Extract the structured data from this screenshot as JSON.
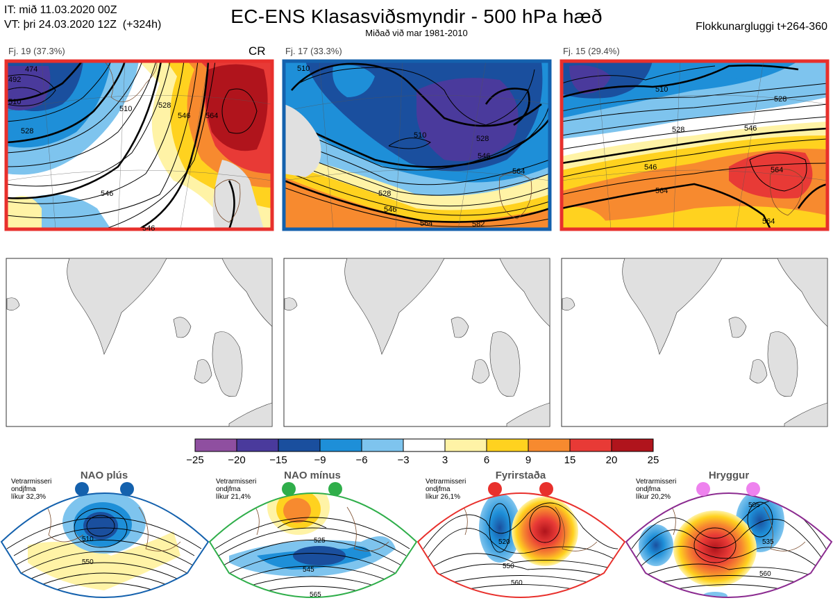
{
  "header": {
    "init_time": "IT: mið 11.03.2020 00Z",
    "valid_time": "VT: þri 24.03.2020 12Z",
    "lead": "(+324h)",
    "title": "EC-ENS Klasasviðsmyndir - 500 hPa hæð",
    "subtitle": "Miðað við mar 1981-2010",
    "window": "Flokkunargluggi t+264-360"
  },
  "clusters": [
    {
      "label": "Fj. 19 (37.3%)",
      "tag": "CR",
      "frame_color": "#e8302c",
      "contour_labels": [
        "474",
        "492",
        "510",
        "510",
        "528",
        "528",
        "546",
        "546",
        "564",
        "546"
      ]
    },
    {
      "label": "Fj. 17 (33.3%)",
      "tag": "",
      "frame_color": "#1461ad",
      "contour_labels": [
        "510",
        "510",
        "528",
        "546",
        "528",
        "546",
        "564",
        "564",
        "582"
      ]
    },
    {
      "label": "Fj. 15 (29.4%)",
      "tag": "",
      "frame_color": "#e8302c",
      "contour_labels": [
        "510",
        "528",
        "528",
        "546",
        "546",
        "564",
        "564",
        "564"
      ]
    }
  ],
  "colorbar": {
    "ticks": [
      "−25",
      "−20",
      "−15",
      "−9",
      "−6",
      "−3",
      "3",
      "6",
      "9",
      "15",
      "20",
      "25"
    ],
    "colors": [
      "#8f4fa0",
      "#4a3a9c",
      "#1a4f9e",
      "#1e8fd8",
      "#7ec4ee",
      "#ffffff",
      "#fff3a6",
      "#ffd21f",
      "#f78a2f",
      "#e83a36",
      "#b0141c"
    ]
  },
  "regimes": [
    {
      "name": "NAO plús",
      "note": [
        "Vetrarmisseri",
        "ondjfma",
        "líkur 32,3%"
      ],
      "frame_color": "#1461ad",
      "dot_color": "#1461ad",
      "contour_labels": [
        "510",
        "550"
      ]
    },
    {
      "name": "NAO mínus",
      "note": [
        "Vetrarmisseri",
        "ondjfma",
        "líkur 21,4%"
      ],
      "frame_color": "#2fae4a",
      "dot_color": "#2fae4a",
      "contour_labels": [
        "525",
        "545",
        "565"
      ]
    },
    {
      "name": "Fyrirstaða",
      "note": [
        "Vetrarmisseri",
        "ondjfma",
        "líkur 26,1%"
      ],
      "frame_color": "#e8302c",
      "dot_color": "#e8302c",
      "contour_labels": [
        "520",
        "550",
        "560"
      ]
    },
    {
      "name": "Hryggur",
      "note": [
        "Vetrarmisseri",
        "ondjfma",
        "líkur 20,2%"
      ],
      "frame_color": "#8b2b90",
      "dot_color": "#ee82ee",
      "contour_labels": [
        "505",
        "535",
        "560"
      ]
    }
  ]
}
